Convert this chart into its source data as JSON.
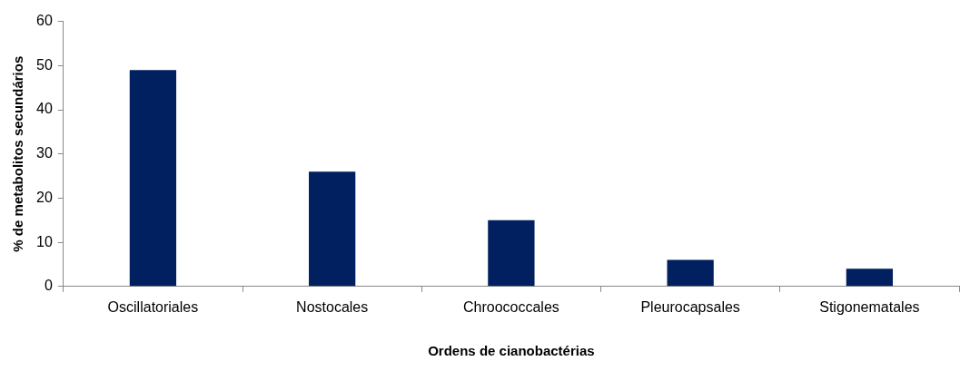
{
  "chart_data": {
    "type": "bar",
    "xlabel": "Ordens de cianobactérias",
    "ylabel": "% de metabolitos secundários",
    "categories": [
      "Oscillatoriales",
      "Nostocales",
      "Chroococcales",
      "Pleurocapsales",
      "Stigonematales"
    ],
    "values": [
      49,
      26,
      15,
      6,
      4
    ],
    "color": "#002060",
    "ylim": [
      0,
      60
    ],
    "yticks": [
      0,
      10,
      20,
      30,
      40,
      50,
      60
    ],
    "grid": false,
    "legend": false
  }
}
